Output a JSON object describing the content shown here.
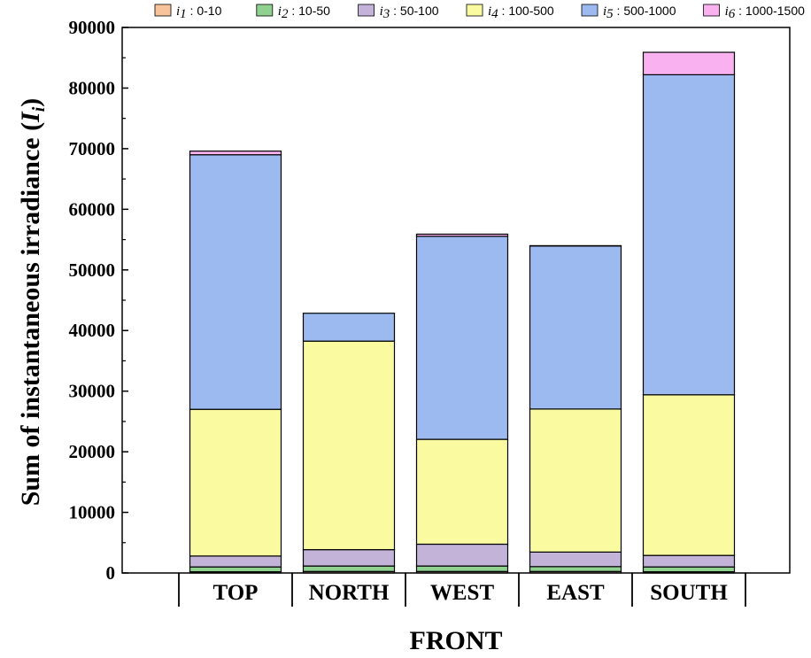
{
  "chart_data": {
    "type": "bar",
    "stacked": true,
    "title": "",
    "xlabel": "FRONT",
    "ylabel_main": "Sum of instantaneous irradiance (",
    "ylabel_symbol": "I",
    "ylabel_subscript": "i",
    "ylabel_close": ")",
    "categories": [
      "TOP",
      "NORTH",
      "WEST",
      "EAST",
      "SOUTH"
    ],
    "ylim": [
      0,
      90000
    ],
    "yticks": [
      "0",
      "10000",
      "20000",
      "30000",
      "40000",
      "50000",
      "60000",
      "70000",
      "80000",
      "90000"
    ],
    "legend_position": "top",
    "series": [
      {
        "symbol": "i",
        "sub": "1",
        "range": " :  0-10",
        "color": "#f8c29a",
        "values": [
          200,
          250,
          250,
          250,
          200
        ]
      },
      {
        "symbol": "i",
        "sub": "2",
        "range": " : 10-50",
        "color": "#8fd18f",
        "values": [
          800,
          900,
          900,
          800,
          800
        ]
      },
      {
        "symbol": "i",
        "sub": "3",
        "range": " : 50-100",
        "color": "#c3b3d8",
        "values": [
          1800,
          2700,
          3600,
          2400,
          1900
        ]
      },
      {
        "symbol": "i",
        "sub": "4",
        "range": " : 100-500",
        "color": "#fafaa0",
        "values": [
          24200,
          34400,
          17300,
          23600,
          26500
        ]
      },
      {
        "symbol": "i",
        "sub": "5",
        "range": " : 500-1000",
        "color": "#9dbaf0",
        "values": [
          42000,
          4600,
          33500,
          26900,
          52800
        ]
      },
      {
        "symbol": "i",
        "sub": "6",
        "range": " : 1000-1500",
        "color": "#f9b1f0",
        "values": [
          600,
          0,
          350,
          50,
          3700
        ]
      }
    ]
  }
}
